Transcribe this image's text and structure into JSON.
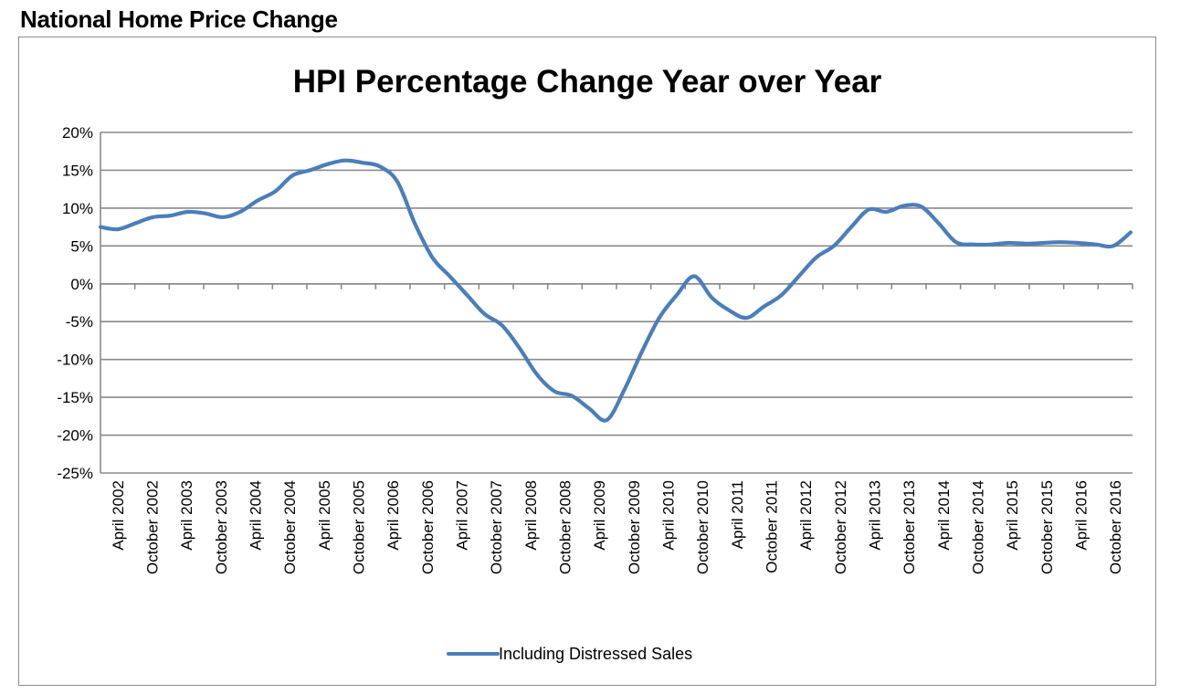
{
  "page": {
    "heading": "National Home Price Change"
  },
  "chart_data": {
    "type": "line",
    "title": "HPI Percentage Change Year over Year",
    "xlabel": "",
    "ylabel": "",
    "ylim": [
      -25,
      20
    ],
    "yticks": [
      "20%",
      "15%",
      "10%",
      "5%",
      "0%",
      "-5%",
      "-10%",
      "-15%",
      "-20%",
      "-25%"
    ],
    "ytick_values": [
      20,
      15,
      10,
      5,
      0,
      -5,
      -10,
      -15,
      -20,
      -25
    ],
    "xtick_labels": [
      "April 2002",
      "October 2002",
      "April 2003",
      "October 2003",
      "April 2004",
      "October 2004",
      "April 2005",
      "October 2005",
      "April 2006",
      "October 2006",
      "April 2007",
      "October 2007",
      "April 2008",
      "October 2008",
      "April 2009",
      "October 2009",
      "April 2010",
      "October 2010",
      "April 2011",
      "October 2011",
      "April 2012",
      "October 2012",
      "April 2013",
      "October 2013",
      "April 2014",
      "October 2014",
      "April 2015",
      "October 2015",
      "April 2016",
      "October 2016"
    ],
    "grid": true,
    "legend_position": "bottom",
    "series": [
      {
        "name": "Including Distressed Sales",
        "color": "#4a7ebb",
        "x": [
          "2002-04",
          "2002-07",
          "2002-10",
          "2003-01",
          "2003-04",
          "2003-07",
          "2003-10",
          "2004-01",
          "2004-04",
          "2004-07",
          "2004-10",
          "2005-01",
          "2005-04",
          "2005-07",
          "2005-10",
          "2006-01",
          "2006-04",
          "2006-07",
          "2006-10",
          "2007-01",
          "2007-04",
          "2007-07",
          "2007-10",
          "2008-01",
          "2008-04",
          "2008-07",
          "2008-10",
          "2009-01",
          "2009-04",
          "2009-07",
          "2009-10",
          "2010-01",
          "2010-04",
          "2010-07",
          "2010-10",
          "2011-01",
          "2011-04",
          "2011-07",
          "2011-10",
          "2012-01",
          "2012-04",
          "2012-07",
          "2012-10",
          "2013-01",
          "2013-04",
          "2013-07",
          "2013-10",
          "2014-01",
          "2014-04",
          "2014-07",
          "2014-10",
          "2015-01",
          "2015-04",
          "2015-07",
          "2015-10",
          "2016-01",
          "2016-04",
          "2016-07",
          "2016-10",
          "2017-01"
        ],
        "values": [
          7.5,
          7.2,
          8.0,
          8.8,
          9.0,
          9.5,
          9.3,
          8.8,
          9.5,
          11.0,
          12.2,
          14.3,
          15.0,
          15.8,
          16.3,
          16.0,
          15.5,
          13.5,
          8.0,
          3.5,
          1.0,
          -1.5,
          -4.0,
          -5.5,
          -8.5,
          -12.0,
          -14.2,
          -14.8,
          -16.5,
          -18.0,
          -14.0,
          -9.0,
          -4.5,
          -1.5,
          1.0,
          -1.8,
          -3.5,
          -4.5,
          -3.0,
          -1.5,
          1.0,
          3.5,
          5.0,
          7.5,
          9.8,
          9.5,
          10.3,
          10.2,
          8.0,
          5.5,
          5.2,
          5.2,
          5.4,
          5.3,
          5.4,
          5.5,
          5.4,
          5.2,
          5.0,
          6.8
        ]
      }
    ]
  }
}
